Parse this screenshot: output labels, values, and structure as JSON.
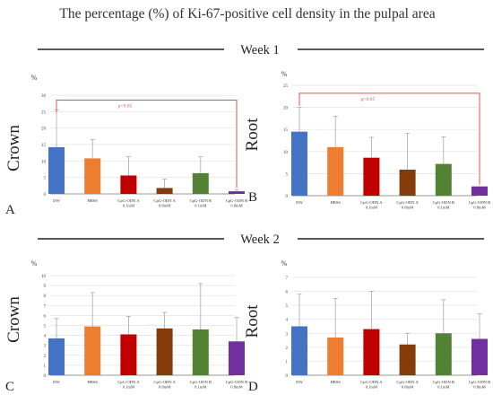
{
  "figure": {
    "title": "The percentage (%) of Ki-67-positive cell density in the pulpal area",
    "week1_label": "Week 1",
    "week2_label": "Week 2"
  },
  "colors": {
    "DW": "#4472c4",
    "HBSS": "#ed7d31",
    "CpG-ODN A 0.1mM": "#c00000",
    "CpG-ODN A 0.8mM": "#843c0c",
    "CpG-ODN B 0.1mM": "#548235",
    "CpG-ODN B 0.8mM": "#7030a0",
    "significance": "#e05050"
  },
  "chart_data": [
    {
      "type": "bar",
      "panel": "A",
      "ylabel": "Crown",
      "unit": "%",
      "categories": [
        "DW",
        "HBSS",
        "CpG-ODN A 0.1mM",
        "CpG-ODN A 0.8mM",
        "CpG-ODN B 0.1mM",
        "CpG-ODN B 0.8mM"
      ],
      "values": [
        14.2,
        10.8,
        5.6,
        1.8,
        6.3,
        0.8
      ],
      "error_upper": [
        25.5,
        16.5,
        11.3,
        4.5,
        11.3,
        1.3
      ],
      "ylim": [
        0,
        30
      ],
      "yticks": [
        0,
        5,
        10,
        15,
        20,
        25,
        30
      ],
      "significance": {
        "from": 0,
        "to": 5,
        "label": "p<0.05",
        "level": 28.5
      }
    },
    {
      "type": "bar",
      "panel": "B",
      "ylabel": "Root",
      "unit": "%",
      "categories": [
        "DW",
        "HBSS",
        "CpG-ODN A 0.1mM",
        "CpG-ODN A 0.8mM",
        "CpG-ODN B 0.1mM",
        "CpG-ODN B 0.8mM"
      ],
      "values": [
        14.5,
        11.0,
        8.6,
        5.9,
        7.2,
        2.1
      ],
      "error_upper": [
        20.0,
        18.0,
        13.2,
        14.1,
        13.3,
        2.1
      ],
      "ylim": [
        0,
        25
      ],
      "yticks": [
        0,
        5,
        10,
        15,
        20,
        25
      ],
      "significance": {
        "from": 0,
        "to": 5,
        "label": "p<0.05",
        "level": 23.2
      }
    },
    {
      "type": "bar",
      "panel": "C",
      "ylabel": "Crown",
      "unit": "%",
      "categories": [
        "DW",
        "HBSS",
        "CpG-ODN A 0.1mM",
        "CpG-ODN A 0.8mM",
        "CpG-ODN B 0.1mM",
        "CpG-ODN B 0.8mM"
      ],
      "values": [
        3.7,
        4.9,
        4.1,
        4.7,
        4.6,
        3.4
      ],
      "error_upper": [
        5.7,
        8.3,
        5.9,
        6.3,
        9.2,
        5.8
      ],
      "ylim": [
        0,
        10
      ],
      "yticks": [
        0,
        1,
        2,
        3,
        4,
        5,
        6,
        7,
        8,
        9,
        10
      ]
    },
    {
      "type": "bar",
      "panel": "D",
      "ylabel": "Root",
      "unit": "%",
      "categories": [
        "DW",
        "HBSS",
        "CpG-ODN A 0.1mM",
        "CpG-ODN A 0.8mM",
        "CpG-ODN B 0.1mM",
        "CpG-ODN B 0.8mM"
      ],
      "values": [
        3.5,
        2.7,
        3.3,
        2.2,
        3.0,
        2.6
      ],
      "error_upper": [
        5.8,
        5.5,
        6.0,
        3.0,
        5.4,
        4.4
      ],
      "ylim": [
        0,
        7
      ],
      "yticks": [
        0,
        1,
        2,
        3,
        4,
        5,
        6,
        7
      ]
    }
  ]
}
